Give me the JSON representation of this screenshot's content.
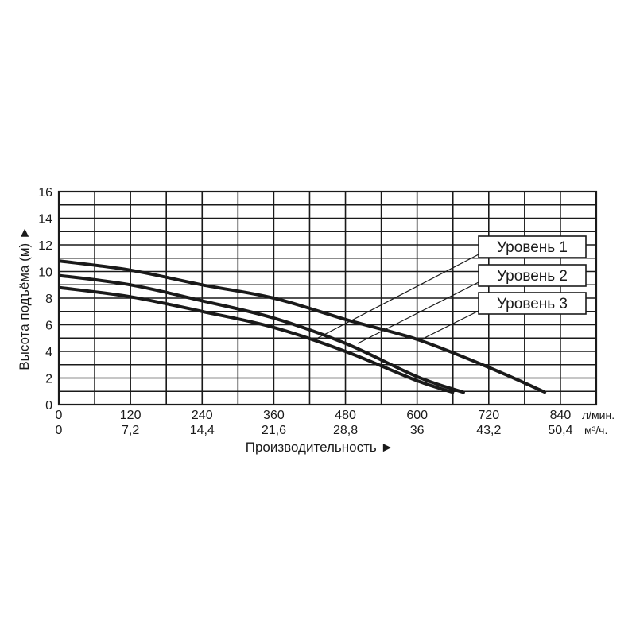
{
  "chart_data": {
    "type": "line",
    "x_unit_lmin": "л/мин.",
    "x_unit_m3h": "м³/ч.",
    "xlabel": "Производительность ►",
    "ylabel": "Высота подъёма (м) ►",
    "xlim": [
      0,
      900
    ],
    "ylim": [
      0,
      16
    ],
    "x_ticks_lmin": [
      "0",
      "120",
      "240",
      "360",
      "480",
      "600",
      "720",
      "840"
    ],
    "x_ticks_m3h": [
      "0",
      "7,2",
      "14,4",
      "21,6",
      "28,8",
      "36",
      "43,2",
      "50,4"
    ],
    "y_ticks": [
      "0",
      "2",
      "4",
      "6",
      "8",
      "10",
      "12",
      "14",
      "16"
    ],
    "grid": true,
    "series": [
      {
        "name": "Уровень 1",
        "points": [
          [
            0,
            10.8
          ],
          [
            120,
            10.1
          ],
          [
            240,
            9.0
          ],
          [
            360,
            8.0
          ],
          [
            480,
            6.4
          ],
          [
            600,
            4.9
          ],
          [
            720,
            2.8
          ],
          [
            816,
            0.9
          ]
        ]
      },
      {
        "name": "Уровень 2",
        "points": [
          [
            0,
            9.7
          ],
          [
            120,
            9.0
          ],
          [
            240,
            7.8
          ],
          [
            360,
            6.5
          ],
          [
            480,
            4.6
          ],
          [
            600,
            2.1
          ],
          [
            680,
            0.9
          ]
        ]
      },
      {
        "name": "Уровень 3",
        "points": [
          [
            0,
            8.8
          ],
          [
            120,
            8.1
          ],
          [
            240,
            7.0
          ],
          [
            360,
            5.8
          ],
          [
            480,
            4.0
          ],
          [
            600,
            1.8
          ],
          [
            662,
            0.9
          ]
        ]
      }
    ]
  }
}
